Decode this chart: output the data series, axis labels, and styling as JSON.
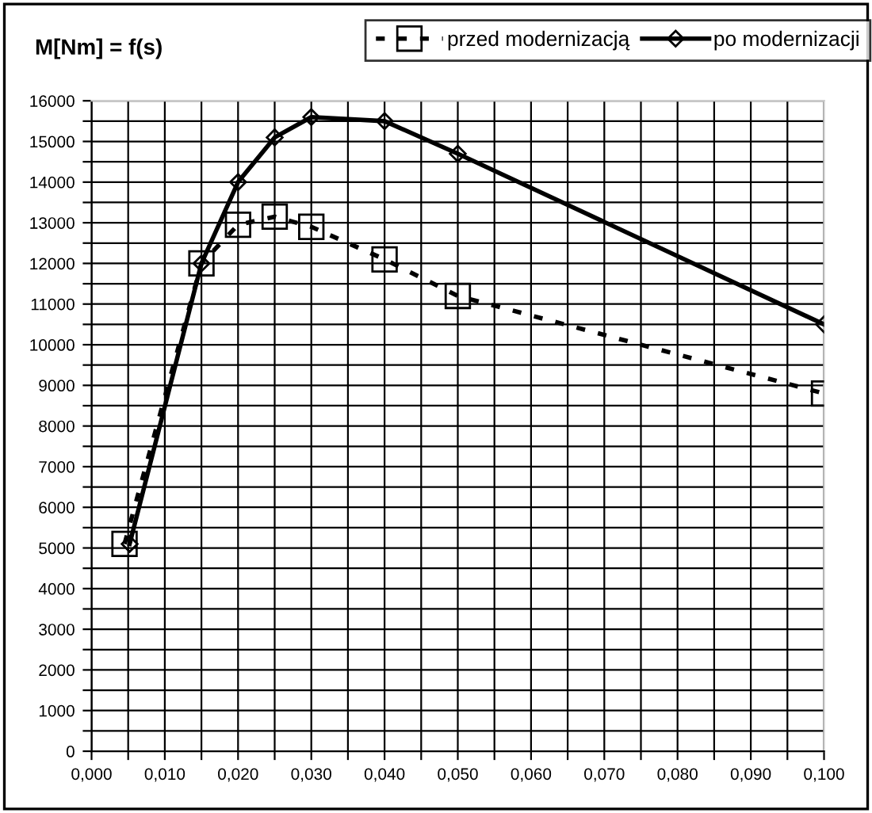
{
  "chart_data": {
    "type": "line",
    "title": "M[Nm] = f(s)",
    "series": [
      {
        "name": "przed modernizacją",
        "color": "#000000",
        "x": [
          0.0045,
          0.015,
          0.02,
          0.025,
          0.03,
          0.04,
          0.05,
          0.1
        ],
        "values": [
          5100,
          12000,
          12950,
          13150,
          12900,
          12100,
          11200,
          8800
        ],
        "marker": "square",
        "line_style": "dashed"
      },
      {
        "name": "po modernizacji",
        "color": "#000000",
        "x": [
          0.0052,
          0.015,
          0.02,
          0.025,
          0.03,
          0.04,
          0.05,
          0.1
        ],
        "values": [
          5100,
          12000,
          14000,
          15100,
          15600,
          15500,
          14700,
          10500
        ],
        "marker": "diamond",
        "line_style": "solid"
      }
    ],
    "xlim": [
      0,
      0.1
    ],
    "xticks": [
      {
        "value": 0,
        "label": "0,000"
      },
      {
        "value": 0.005,
        "label": null
      },
      {
        "value": 0.01,
        "label": "0,010"
      },
      {
        "value": 0.015,
        "label": null
      },
      {
        "value": 0.02,
        "label": "0,020"
      },
      {
        "value": 0.025,
        "label": null
      },
      {
        "value": 0.03,
        "label": "0,030"
      },
      {
        "value": 0.035,
        "label": null
      },
      {
        "value": 0.04,
        "label": "0,040"
      },
      {
        "value": 0.045,
        "label": null
      },
      {
        "value": 0.05,
        "label": "0,050"
      },
      {
        "value": 0.055,
        "label": null
      },
      {
        "value": 0.06,
        "label": "0,060"
      },
      {
        "value": 0.065,
        "label": null
      },
      {
        "value": 0.07,
        "label": "0,070"
      },
      {
        "value": 0.075,
        "label": null
      },
      {
        "value": 0.08,
        "label": "0,080"
      },
      {
        "value": 0.085,
        "label": null
      },
      {
        "value": 0.09,
        "label": "0,090"
      },
      {
        "value": 0.095,
        "label": null
      },
      {
        "value": 0.1,
        "label": "0,100"
      }
    ],
    "ylim": [
      0,
      16000
    ],
    "yticks": [
      0,
      {
        "value": 500,
        "label": null
      },
      1000,
      {
        "value": 1500,
        "label": null
      },
      2000,
      {
        "value": 2500,
        "label": null
      },
      3000,
      {
        "value": 3500,
        "label": null
      },
      4000,
      {
        "value": 4500,
        "label": null
      },
      5000,
      {
        "value": 5500,
        "label": null
      },
      6000,
      {
        "value": 6500,
        "label": null
      },
      7000,
      {
        "value": 7500,
        "label": null
      },
      8000,
      {
        "value": 8500,
        "label": null
      },
      9000,
      {
        "value": 9500,
        "label": null
      },
      10000,
      {
        "value": 10500,
        "label": null
      },
      11000,
      {
        "value": 11500,
        "label": null
      },
      12000,
      {
        "value": 12500,
        "label": null
      },
      13000,
      {
        "value": 13500,
        "label": null
      },
      14000,
      {
        "value": 14500,
        "label": null
      },
      15000,
      {
        "value": 15500,
        "label": null
      },
      16000
    ],
    "grid": true,
    "legend": "top right"
  }
}
